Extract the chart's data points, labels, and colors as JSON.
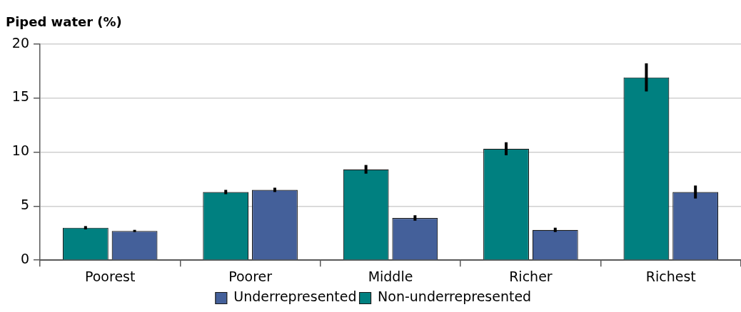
{
  "chart_data": {
    "type": "bar",
    "ylabel": "Piped water (%)",
    "categories": [
      "Poorest",
      "Poorer",
      "Middle",
      "Richer",
      "Richest"
    ],
    "series": [
      {
        "name": "Non-underrepresented",
        "color": "#008080",
        "values": [
          3.0,
          6.3,
          8.4,
          10.3,
          16.9
        ],
        "errors": [
          0.15,
          0.2,
          0.4,
          0.6,
          1.3
        ]
      },
      {
        "name": "Underrepresented",
        "color": "#44609a",
        "values": [
          2.7,
          6.5,
          3.9,
          2.8,
          6.3
        ],
        "errors": [
          0.1,
          0.2,
          0.25,
          0.2,
          0.6
        ]
      }
    ],
    "ylim": [
      0,
      20
    ],
    "yticks": [
      0,
      5,
      10,
      15,
      20
    ],
    "grid": "y",
    "legend": "bottom"
  }
}
